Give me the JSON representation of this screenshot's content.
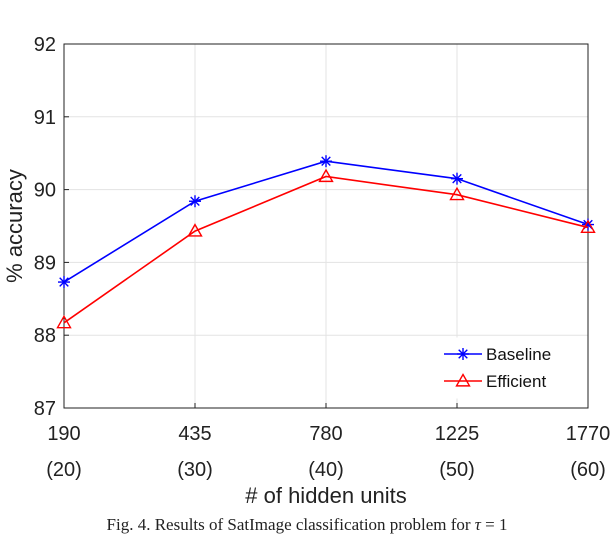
{
  "chart_data": {
    "type": "line",
    "x_tick_labels": [
      "190",
      "435",
      "780",
      "1225",
      "1770"
    ],
    "x_sub_labels": [
      "(20)",
      "(30)",
      "(40)",
      "(50)",
      "(60)"
    ],
    "y_ticks": [
      87,
      88,
      89,
      90,
      91,
      92
    ],
    "ylim": [
      87,
      92
    ],
    "xlabel": "# of hidden units",
    "ylabel": "% accuracy",
    "grid": true,
    "legend_position": "bottom-right",
    "series": [
      {
        "name": "Baseline",
        "color": "#0000ff",
        "marker": "asterisk",
        "values": [
          88.73,
          89.84,
          90.39,
          90.15,
          89.52
        ]
      },
      {
        "name": "Efficient",
        "color": "#ff0000",
        "marker": "triangle",
        "values": [
          88.17,
          89.43,
          90.18,
          89.93,
          89.48
        ]
      }
    ]
  },
  "caption": {
    "prefix": "Fig. 4.   Results of SatImage classification problem for ",
    "symbol": "τ",
    "suffix": " = 1"
  }
}
